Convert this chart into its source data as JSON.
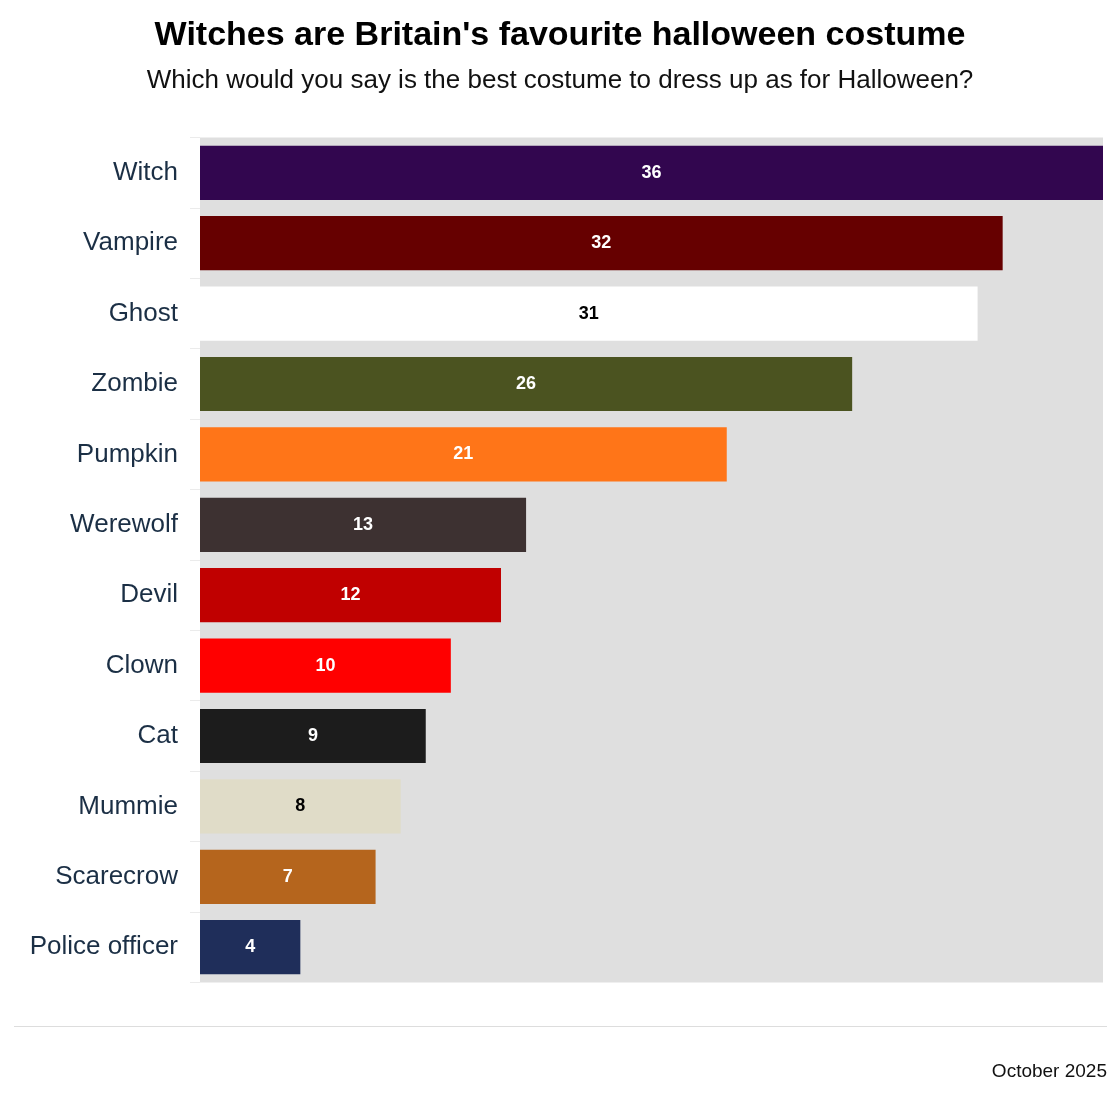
{
  "chart_data": {
    "type": "bar",
    "orientation": "horizontal",
    "title": "Witches are Britain's favourite halloween costume",
    "subtitle": "Which would you say is the best costume to dress up as for Halloween?",
    "categories": [
      "Witch",
      "Vampire",
      "Ghost",
      "Zombie",
      "Pumpkin",
      "Werewolf",
      "Devil",
      "Clown",
      "Cat",
      "Mummie",
      "Scarecrow",
      "Police officer"
    ],
    "values": [
      36,
      32,
      31,
      26,
      21,
      13,
      12,
      10,
      9,
      8,
      7,
      4
    ],
    "colors": [
      "#32064f",
      "#660000",
      "#ffffff",
      "#4b5320",
      "#ff7518",
      "#3d3131",
      "#c00000",
      "#ff0000",
      "#1c1c1c",
      "#e0dcc8",
      "#b5651d",
      "#1f2e5a"
    ],
    "xlim": [
      0,
      36
    ],
    "tick_labels": "y",
    "data_labels": true,
    "annotations": [
      "October 2025"
    ]
  }
}
